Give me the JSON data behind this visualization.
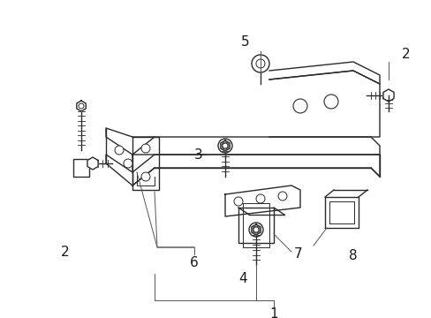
{
  "bg_color": "#ffffff",
  "line_color": "#2a2a2a",
  "label_color": "#1a1a1a",
  "xlim": [
    0,
    489
  ],
  "ylim": [
    0,
    360
  ]
}
